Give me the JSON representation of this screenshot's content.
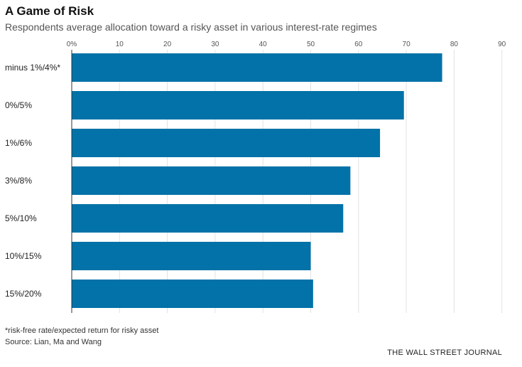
{
  "chart_data": {
    "type": "bar",
    "orientation": "horizontal",
    "title": "A Game of Risk",
    "subtitle": "Respondents average allocation toward a risky asset in various interest-rate regimes",
    "categories": [
      "minus 1%/4%*",
      "0%/5%",
      "1%/6%",
      "3%/8%",
      "5%/10%",
      "10%/15%",
      "15%/20%"
    ],
    "values": [
      77.5,
      69.5,
      64.5,
      58.3,
      56.8,
      50.0,
      50.5
    ],
    "xlim": [
      0,
      90
    ],
    "x_ticks": [
      0,
      10,
      20,
      30,
      40,
      50,
      60,
      70,
      80,
      90
    ],
    "x_tick_labels": [
      "0%",
      "10",
      "20",
      "30",
      "40",
      "50",
      "60",
      "70",
      "80",
      "90"
    ],
    "x_axis_position": "top",
    "grid": true,
    "bar_color": "#0272a8",
    "grid_color": "#e2e2e2"
  },
  "notes": {
    "footnote": "*risk-free rate/expected return for risky asset",
    "source": "Source: Lian, Ma and Wang"
  },
  "brand": "THE WALL STREET JOURNAL"
}
